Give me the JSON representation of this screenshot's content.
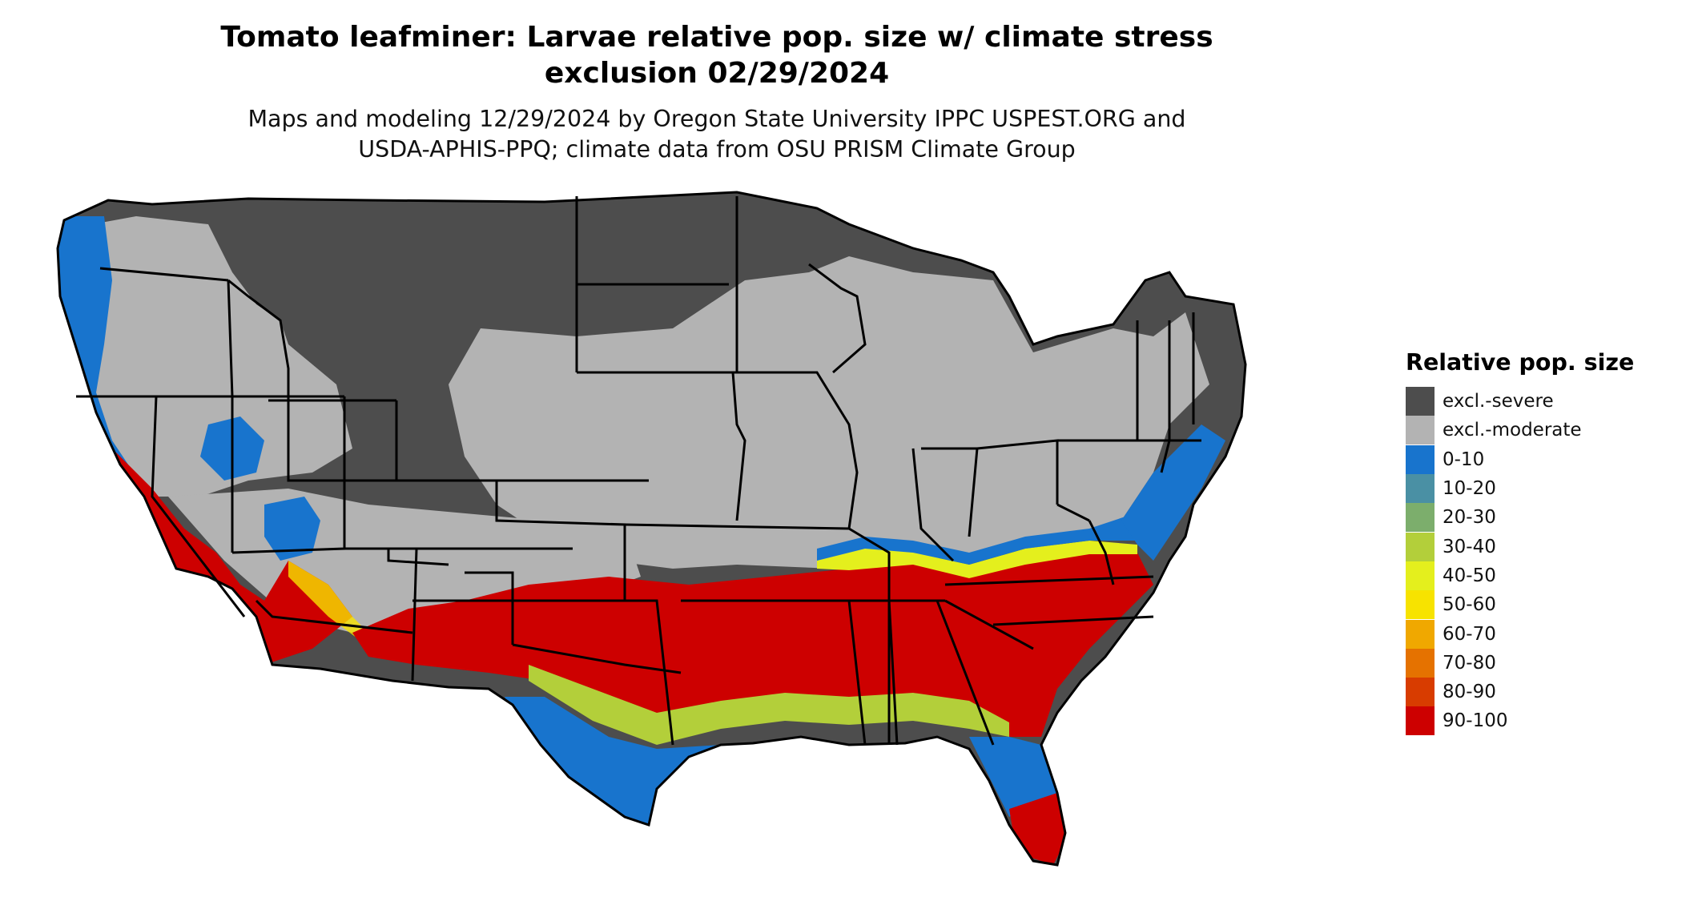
{
  "title": {
    "line1": "Tomato leafminer: Larvae relative pop. size w/ climate stress",
    "line2": "exclusion 02/29/2024"
  },
  "subtitle": {
    "line1": "Maps and modeling 12/29/2024 by Oregon State University IPPC USPEST.ORG and",
    "line2": "USDA-APHIS-PPQ; climate data from OSU PRISM Climate Group"
  },
  "legend": {
    "title": "Relative pop. size",
    "items": [
      {
        "label": "excl.-severe",
        "color": "#4d4d4d"
      },
      {
        "label": "excl.-moderate",
        "color": "#b3b3b3"
      },
      {
        "label": "0-10",
        "color": "#1874cd"
      },
      {
        "label": "10-20",
        "color": "#4a90a4"
      },
      {
        "label": "20-30",
        "color": "#7cae6c"
      },
      {
        "label": "30-40",
        "color": "#b3cf3a"
      },
      {
        "label": "40-50",
        "color": "#e4ef1d"
      },
      {
        "label": "50-60",
        "color": "#f7e300"
      },
      {
        "label": "60-70",
        "color": "#f0a800"
      },
      {
        "label": "70-80",
        "color": "#e57200"
      },
      {
        "label": "80-90",
        "color": "#d83c00"
      },
      {
        "label": "90-100",
        "color": "#cd0000"
      }
    ]
  }
}
